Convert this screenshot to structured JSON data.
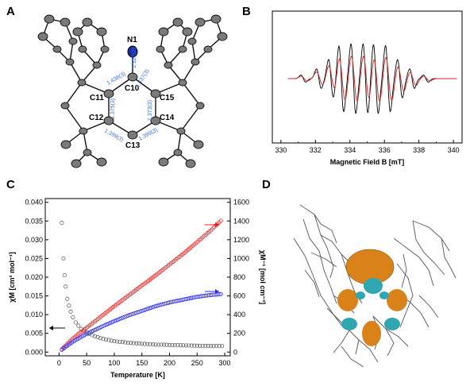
{
  "panels": {
    "A": "A",
    "B": "B",
    "C": "C",
    "D": "D"
  },
  "structure": {
    "atoms": {
      "N1": "N1",
      "C10": "C10",
      "C11": "C11",
      "C12": "C12",
      "C13": "C13",
      "C14": "C14",
      "C15": "C15"
    },
    "bonds": {
      "n1_c10": "1.327(2)",
      "c10_c11": "1.438(3)",
      "c10_c15": "1.437(3)",
      "c11_c12": "1.375(3)",
      "c15_c14": "1.373(3)",
      "c12_c13": "1.399(3)",
      "c13_c14": "1.399(3)"
    }
  },
  "chart_data": [
    {
      "type": "line",
      "panel": "B",
      "xlabel": "Magnetic Field B [mT]",
      "xlim": [
        329.5,
        340.5
      ],
      "xticks": [
        330,
        332,
        334,
        336,
        338,
        340
      ],
      "series": [
        {
          "color": "#000000"
        },
        {
          "color": "#e02020"
        }
      ]
    },
    {
      "type": "scatter",
      "panel": "C",
      "xlabel": "Temperature [K]",
      "ylabel": "χM [cm³ mol⁻¹]",
      "ylabel_right": "χM⁻¹ [mol cm⁻³]",
      "xlim": [
        -25,
        310
      ],
      "ylim": [
        -0.001,
        0.041
      ],
      "ylim_right": [
        -40,
        1640
      ],
      "xticks": [
        0,
        50,
        100,
        150,
        200,
        250,
        300
      ],
      "yticks": [
        "0.000",
        "0.005",
        "0.010",
        "0.015",
        "0.020",
        "0.025",
        "0.030",
        "0.035",
        "0.040"
      ],
      "yticks_right": [
        0,
        200,
        400,
        600,
        800,
        1000,
        1200,
        1400,
        1600
      ],
      "series": [
        {
          "axis": "left",
          "color": "#555555",
          "x": [
            5,
            8,
            10,
            12,
            15,
            20,
            25,
            30,
            40,
            50,
            60,
            75,
            100,
            125,
            150,
            175,
            200,
            225,
            250,
            275,
            295
          ],
          "y": [
            0.0345,
            0.025,
            0.0205,
            0.0175,
            0.0142,
            0.0112,
            0.0093,
            0.0079,
            0.0062,
            0.0052,
            0.0045,
            0.0037,
            0.0029,
            0.0025,
            0.0022,
            0.002,
            0.0019,
            0.0018,
            0.0017,
            0.0016,
            0.0016
          ]
        },
        {
          "axis": "right",
          "color": "#e02020",
          "x": [
            5,
            25,
            50,
            75,
            100,
            125,
            150,
            175,
            200,
            225,
            250,
            275,
            295
          ],
          "y": [
            30,
            145,
            260,
            375,
            490,
            600,
            710,
            820,
            935,
            1050,
            1175,
            1300,
            1415
          ]
        },
        {
          "axis": "right",
          "color": "#2a2af0",
          "x": [
            5,
            25,
            50,
            75,
            100,
            125,
            150,
            175,
            200,
            225,
            250,
            275,
            295
          ],
          "y": [
            25,
            110,
            195,
            265,
            330,
            390,
            440,
            490,
            530,
            560,
            590,
            610,
            620
          ]
        }
      ]
    }
  ]
}
